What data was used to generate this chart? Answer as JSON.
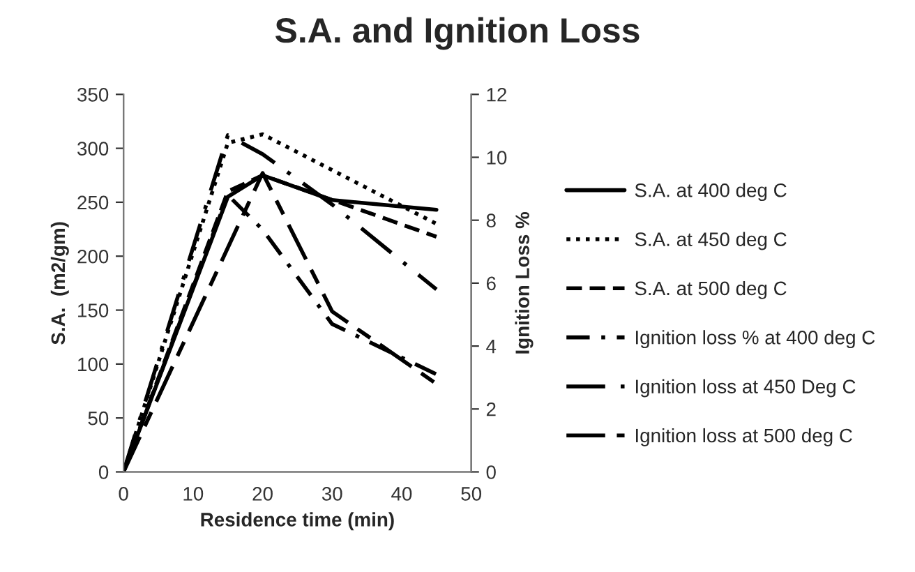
{
  "chart_data": {
    "type": "line",
    "title": "S.A. and Ignition Loss",
    "xlabel": "Residence time (min)",
    "ylabel": "S.A.  (m2/gm)",
    "y2label": "Ignition Loss %",
    "xlim": [
      0,
      50
    ],
    "xticks": [
      0,
      10,
      20,
      30,
      40,
      50
    ],
    "ylim": [
      0,
      350
    ],
    "yticks": [
      0,
      50,
      100,
      150,
      200,
      250,
      300,
      350
    ],
    "y2lim": [
      0,
      12
    ],
    "y2ticks": [
      0,
      2,
      4,
      6,
      8,
      10,
      12
    ],
    "legend": "right",
    "grid": false,
    "series": [
      {
        "name": "S.A. at 400 deg C",
        "color": "#000000",
        "line_style": "solid",
        "x": [
          0,
          15,
          20,
          30,
          45
        ],
        "values": [
          0,
          255,
          275,
          252,
          243
        ]
      },
      {
        "name": "S.A. at 450 deg C",
        "color": "#000000",
        "line_style": "dotted",
        "x": [
          0,
          15,
          20,
          45
        ],
        "values": [
          0,
          305,
          313,
          230
        ]
      },
      {
        "name": "S.A. at 500 deg C",
        "color": "#000000",
        "line_style": "dashed",
        "x": [
          0,
          15,
          20,
          45
        ],
        "values": [
          0,
          260,
          275,
          218
        ]
      },
      {
        "name": "Ignition loss % at 400 deg C",
        "color": "#000000",
        "line_style": "dashdot",
        "axis": "y2",
        "x": [
          0,
          15,
          20,
          30,
          45
        ],
        "values": [
          0,
          8.8,
          7.7,
          4.7,
          3.1
        ]
      },
      {
        "name": "Ignition loss at 450 Deg C",
        "color": "#000000",
        "line_style": "longdashdot",
        "axis": "y2",
        "x": [
          0,
          15,
          20,
          30,
          45
        ],
        "values": [
          0,
          10.7,
          10.1,
          8.5,
          5.8
        ]
      },
      {
        "name": "Ignition loss at 500 deg C",
        "color": "#000000",
        "line_style": "longdash",
        "axis": "y2",
        "x": [
          0,
          20,
          30,
          45
        ],
        "values": [
          0,
          9.5,
          5.1,
          2.8
        ]
      }
    ]
  }
}
